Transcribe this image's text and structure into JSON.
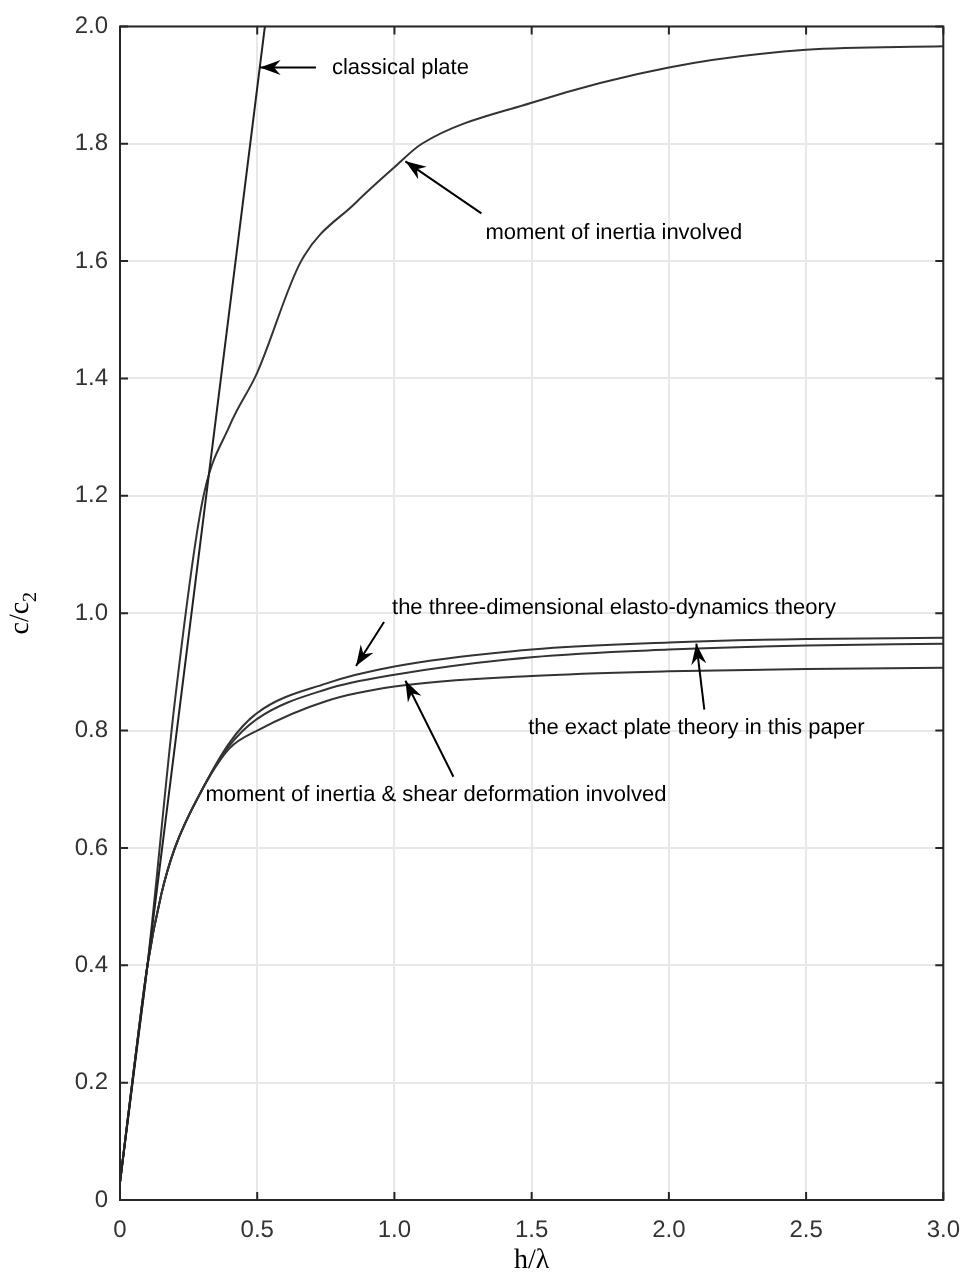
{
  "chart_data": {
    "type": "line",
    "xlabel": "h/λ",
    "ylabel": "c/c$_{2}$",
    "xlim": [
      0,
      3
    ],
    "xticks": [
      0,
      {
        "value": 0.5,
        "label": "0.5"
      },
      {
        "value": 1,
        "label": "1.0"
      },
      {
        "value": 1.5,
        "label": "1.5"
      },
      {
        "value": 2,
        "label": "2.0"
      },
      {
        "value": 2.5,
        "label": "2.5"
      },
      {
        "value": 3,
        "label": "3.0"
      }
    ],
    "ylim": [
      0,
      2
    ],
    "yticks": [
      0,
      0.2,
      0.4,
      0.6,
      0.8,
      {
        "value": 1,
        "label": "1.0"
      },
      1.2,
      1.4,
      1.6,
      1.8,
      {
        "value": 2,
        "label": "2.0"
      }
    ],
    "grid": true,
    "marker": "none",
    "line_style": "solid",
    "series": [
      {
        "color": "#222222",
        "x": [
          0,
          0.1,
          0.528
        ],
        "values": [
          0.03,
          0.4,
          2.0
        ]
      },
      {
        "color": "#333333",
        "x": [
          0,
          0.05,
          0.1,
          0.2,
          0.3,
          0.4,
          0.5,
          0.66,
          0.86,
          1.0,
          1.1,
          1.5,
          2.0,
          2.5,
          3.0
        ],
        "values": [
          0.03,
          0.22,
          0.4,
          0.85,
          1.19,
          1.32,
          1.41,
          1.6,
          1.7,
          1.76,
          1.8,
          1.87,
          1.93,
          1.96,
          1.966
        ]
      },
      {
        "color": "#333333",
        "x": [
          0,
          0.05,
          0.1,
          0.15,
          0.2,
          0.3,
          0.4,
          0.5,
          0.75,
          1.0,
          1.5,
          2.0,
          2.5,
          3.0
        ],
        "values": [
          0.03,
          0.22,
          0.4,
          0.52,
          0.6,
          0.7,
          0.78,
          0.83,
          0.88,
          0.909,
          0.938,
          0.95,
          0.956,
          0.958
        ]
      },
      {
        "color": "#333333",
        "x": [
          0,
          0.05,
          0.1,
          0.15,
          0.2,
          0.3,
          0.4,
          0.5,
          0.75,
          1.0,
          1.5,
          2.0,
          2.5,
          3.0
        ],
        "values": [
          0.03,
          0.22,
          0.4,
          0.52,
          0.6,
          0.7,
          0.775,
          0.82,
          0.87,
          0.895,
          0.925,
          0.938,
          0.945,
          0.948
        ]
      },
      {
        "color": "#333333",
        "x": [
          0,
          0.05,
          0.1,
          0.15,
          0.2,
          0.3,
          0.4,
          0.5,
          0.75,
          1.0,
          1.5,
          2.0,
          2.5,
          3.0
        ],
        "values": [
          0.03,
          0.22,
          0.4,
          0.52,
          0.6,
          0.7,
          0.77,
          0.8,
          0.85,
          0.875,
          0.893,
          0.901,
          0.905,
          0.907
        ]
      }
    ],
    "annotations": [
      {
        "text": "classical plate",
        "x": 0.51,
        "y": 1.93
      },
      {
        "text": "moment of inertia involved",
        "x": 1.04,
        "y": 1.77
      },
      {
        "text": "the three-dimensional elasto-dynamics theory",
        "x": 0.86,
        "y": 0.91
      },
      {
        "text": "the exact plate theory in this paper",
        "x": 2.1,
        "y": 0.948
      },
      {
        "text": "moment of inertia & shear deformation involved",
        "x": 1.04,
        "y": 0.885
      }
    ]
  }
}
